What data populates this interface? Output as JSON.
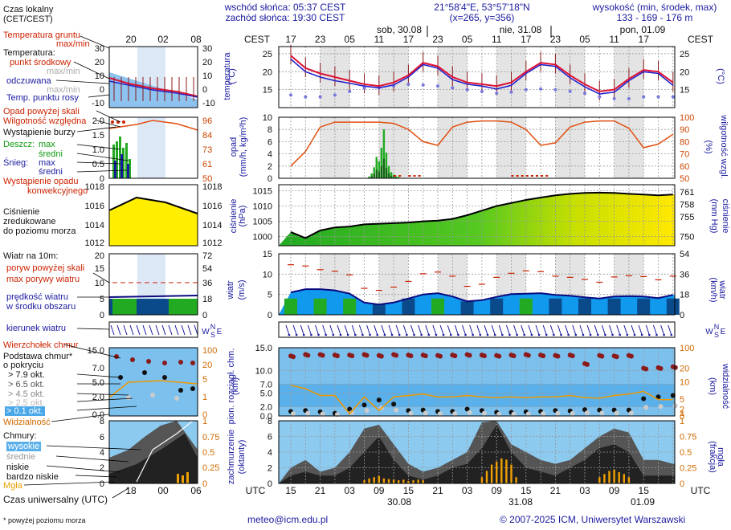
{
  "header": {
    "sunrise": "wschód słońca: 05:37 CEST",
    "sunset": "zachód słońca: 19:30 CEST",
    "coords": "21°58'4\"E, 53°57'18\"N",
    "grid": "(x=265,  y=356)",
    "elev_title": "wysokość (min, środek, max)",
    "elev_values": "133 - 169 - 176 m"
  },
  "legend": {
    "local_time": "Czas lokalny",
    "local_time_sub": "(CET/CEST)",
    "ground_temp": "Temperatura gruntu",
    "ground_temp_sub": "max/min",
    "temperature": "Temperatura:",
    "mid_point": "punkt środkowy",
    "maxmin": "max/min",
    "felt": "odczuwana",
    "felt_maxmin": "max/min",
    "dew": "Temp. punktu rosy",
    "precip_above": "Opad powyżej skali",
    "humidity": "Wilgotność względna",
    "storm": "Wystąpienie burzy",
    "rain": "Deszcz:",
    "rain_max": "max",
    "rain_mean": "średni",
    "snow": "Śnieg:",
    "snow_max": "max",
    "snow_mean": "średni",
    "conv": "Wystąpienie opadu",
    "conv2": "konwekcyjnego",
    "pressure1": "Ciśnienie",
    "pressure2": "zredukowane",
    "pressure3": "do poziomu morza",
    "wind_at": "Wiatr na 10m:",
    "gust_above": "poryw powyżej skali",
    "gust_max": "max porywy wiatru",
    "wind_speed": "prędkość wiatru",
    "wind_area": "w środku obszaru",
    "wind_dir": "kierunek wiatru",
    "cloud_top": "Wierzchołek chmur",
    "cloud_base": "Podstawa chmur*",
    "cloud_base2": "o pokryciu",
    "okt1": "> 7.9 okt.",
    "okt2": "> 6.5 okt.",
    "okt3": "> 4.5 okt.",
    "okt4": "> 2.5 okt.",
    "okt5": "> 0.1 okt.",
    "visibility": "Widzialność",
    "clouds": "Chmury:",
    "high": "wysokie",
    "mid": "średnie",
    "low": "niskie",
    "very_low": "bardzo niskie",
    "fog": "Mgła",
    "utc_label": "Czas uniwersalny (UTC)",
    "footnote": "* powyżej poziomu morza"
  },
  "footer": {
    "email": "meteo@icm.edu.pl",
    "copyright": "© 2007-2025 ICM, Uniwersytet Warszawski"
  },
  "axes": {
    "cest": "CEST",
    "utc": "UTC",
    "day1": "sob, 30.08",
    "day2": "nie, 31.08",
    "day3": "pon, 01.09",
    "date1": "30.08",
    "date2": "31.08",
    "date3": "01.09",
    "cest_ticks": [
      "17",
      "23",
      "05",
      "11",
      "17",
      "23",
      "05",
      "11",
      "17",
      "23",
      "05",
      "11",
      "17"
    ],
    "utc_ticks": [
      "15",
      "21",
      "03",
      "09",
      "15",
      "21",
      "03",
      "09",
      "15",
      "21",
      "03",
      "09",
      "15"
    ],
    "small_top": [
      "20",
      "02",
      "08"
    ],
    "small_bottom": [
      "18",
      "00",
      "06"
    ]
  },
  "panels": {
    "temp_label": "temperatura",
    "temp_unit": "(°C)",
    "precip_label": "opad",
    "precip_unit": "(mm/h, kg/m²h)",
    "hum_label": "wilgotność wzgl.",
    "hum_unit": "(%)",
    "press_label": "ciśnienie",
    "press_unit": "(hPa)",
    "press_label_r": "ciśnienie",
    "press_unit_r": "(mm Hg)",
    "wind_label": "wiatr",
    "wind_unit": "(m/s)",
    "wind_unit_r": "(km/h)",
    "cloud_label": "pion. rozciągł. chm.",
    "cloud_unit": "(km)",
    "vis_label": "widzialność",
    "vis_unit": "(km)",
    "cover_label": "zachmurzenie",
    "cover_unit": "(oktanty)",
    "fog_label": "mgła",
    "fog_unit": "(frakcja)"
  },
  "chart_data": [
    {
      "type": "line",
      "title": "temperatura",
      "ylabel": "(°C)",
      "ylim": [
        10,
        27
      ],
      "yticks": [
        15,
        20,
        25
      ],
      "x_hours": [
        0,
        3,
        6,
        9,
        12,
        15,
        18,
        21,
        24,
        27,
        30,
        33,
        36,
        39,
        42,
        45,
        48,
        51,
        54,
        57,
        60,
        63,
        66,
        69,
        72,
        75,
        78
      ],
      "series": [
        {
          "name": "temperatura punkt środkowy",
          "color": "#dd1133",
          "values": [
            24.5,
            21,
            19.5,
            18.5,
            17.5,
            16.5,
            16,
            17,
            19,
            22.5,
            21.5,
            18.5,
            17,
            16.5,
            16,
            17,
            20,
            22.5,
            22,
            19,
            16.5,
            14.5,
            15,
            18,
            20.5,
            20,
            17
          ]
        },
        {
          "name": "temperatura odczuwana",
          "color": "#2222cc",
          "values": [
            23.5,
            20,
            18.5,
            17.5,
            16.8,
            16,
            15.5,
            16.3,
            18.5,
            22,
            21,
            17.8,
            16.5,
            16,
            15.2,
            16.2,
            19.5,
            22,
            21.5,
            18.3,
            15.8,
            13.8,
            14.3,
            17.5,
            20,
            19.5,
            16.2
          ]
        },
        {
          "name": "temperatura punktu rosy",
          "color": "#7777dd",
          "values": [
            13.5,
            13,
            13,
            13.5,
            14.5,
            15.5,
            15.5,
            16,
            16.5,
            16.3,
            16,
            15.5,
            15,
            14.5,
            14,
            14.3,
            15,
            15.2,
            15,
            14.5,
            14,
            13,
            12.5,
            12.5,
            13,
            13,
            13
          ]
        }
      ]
    },
    {
      "type": "bar",
      "title": "opad",
      "ylabel": "(mm/h, kg/m²h)",
      "ylim": [
        0,
        10
      ],
      "x_hours": [
        16,
        16.5,
        17,
        17.5,
        18,
        18.5,
        19,
        19.5,
        20,
        20.5,
        21,
        21.5,
        22
      ],
      "values": [
        0.3,
        0.8,
        1.8,
        3.5,
        2.8,
        5.0,
        8.0,
        4.2,
        2.0,
        1.0,
        0.6,
        0.3,
        0.2
      ],
      "series_secondary": {
        "name": "wilgotność względna",
        "ylim": [
          50,
          100
        ],
        "color": "#e05010",
        "x_hours": [
          0,
          3,
          6,
          9,
          12,
          15,
          18,
          21,
          24,
          27,
          30,
          33,
          36,
          39,
          42,
          45,
          48,
          51,
          54,
          57,
          60,
          63,
          66,
          69,
          72,
          75,
          78
        ],
        "values": [
          60,
          72,
          92,
          96,
          96,
          96,
          96,
          95,
          90,
          80,
          77,
          92,
          96,
          97,
          97,
          96,
          90,
          77,
          79,
          92,
          96,
          97,
          97,
          91,
          75,
          78,
          86
        ]
      }
    },
    {
      "type": "area",
      "title": "ciśnienie",
      "ylabel": "(hPa)",
      "ylim": [
        997,
        1017
      ],
      "yticks": [
        1000,
        1005,
        1010,
        1015
      ],
      "x_hours": [
        0,
        3,
        6,
        9,
        12,
        15,
        18,
        21,
        24,
        27,
        30,
        33,
        36,
        39,
        42,
        45,
        48,
        51,
        54,
        57,
        60,
        63,
        66,
        69,
        72,
        75,
        78
      ],
      "values": [
        1001.5,
        999.5,
        1002,
        1003,
        1003.3,
        1004,
        1004.2,
        1004.4,
        1004.6,
        1005,
        1005.2,
        1005.8,
        1007,
        1008.5,
        1010,
        1011,
        1012,
        1012.8,
        1013.5,
        1014,
        1014.3,
        1014.4,
        1014.3,
        1014,
        1013.8,
        1013.5,
        1013.8
      ]
    },
    {
      "type": "line",
      "title": "wiatr",
      "ylabel": "(m/s)",
      "ylim": [
        0,
        15
      ],
      "yticks": [
        0,
        5,
        10,
        15
      ],
      "x_hours": [
        0,
        3,
        6,
        9,
        12,
        15,
        18,
        21,
        24,
        27,
        30,
        33,
        36,
        39,
        42,
        45,
        48,
        51,
        54,
        57,
        60,
        63,
        66,
        69,
        72,
        75,
        78
      ],
      "series": [
        {
          "name": "prędkość wiatru",
          "color": "#0a0a80",
          "values": [
            5.5,
            6.3,
            6.3,
            6.0,
            5.2,
            3.0,
            2.5,
            3.0,
            4.0,
            5.0,
            5.3,
            4.5,
            3.3,
            3.6,
            4.4,
            5.1,
            5.2,
            5.3,
            4.9,
            4.7,
            4.3,
            4.0,
            4.5,
            4.6,
            4.5,
            4.1,
            4.9
          ]
        },
        {
          "name": "max porywy wiatru",
          "color": "#cc2200",
          "values": [
            12.3,
            12.0,
            11.1,
            10.7,
            9.8,
            6.5,
            6.0,
            6.8,
            8.2,
            10.1,
            10.5,
            9.5,
            7.0,
            7.5,
            9.2,
            10.2,
            10.8,
            10.6,
            9.5,
            9.2,
            8.7,
            8.0,
            9.3,
            9.6,
            9.4,
            8.6,
            9.5
          ]
        }
      ]
    },
    {
      "type": "scatter",
      "title": "pion. rozciągł. chm.",
      "ylabel": "(km)",
      "ylim": [
        0,
        15
      ],
      "yticks": [
        0,
        2,
        5,
        7,
        10,
        15
      ],
      "yticklabels": [
        "0.0",
        "2.0",
        "5.0",
        "7.0",
        "10.0",
        "15.0"
      ],
      "x_hours": [
        0,
        3,
        6,
        9,
        12,
        15,
        18,
        21,
        24,
        27,
        30,
        33,
        36,
        39,
        42,
        45,
        48,
        51,
        54,
        57,
        60,
        63,
        66,
        69,
        72,
        75,
        78
      ],
      "series": [
        {
          "name": "wierzchołek chmur",
          "color": "#8b1a1a",
          "values": [
            13.2,
            13.5,
            13.5,
            13.4,
            13.4,
            13.5,
            13.3,
            13.5,
            13.4,
            13.4,
            13.3,
            13.4,
            13.5,
            13.4,
            13.3,
            13.4,
            13.5,
            13.4,
            13.3,
            13.4,
            11.5,
            13.3,
            13.2,
            13.3,
            10.5,
            10.6,
            10.8
          ]
        },
        {
          "name": "podstawa chmur",
          "color": "#111111",
          "values": [
            1.0,
            1.2,
            0.9,
            0.6,
            1.5,
            2.4,
            3.5,
            2.6,
            1.2,
            1.3,
            1.0,
            1.0,
            1.5,
            1.2,
            0.8,
            0.8,
            0.9,
            1.0,
            1.2,
            1.1,
            1.4,
            1.3,
            1.3,
            1.3,
            3.8,
            4.2,
            4.5
          ]
        }
      ],
      "series_secondary": {
        "name": "widzialność",
        "ylim": [
          0,
          100
        ],
        "color": "#ee9900",
        "x_hours": [
          0,
          3,
          6,
          9,
          12,
          15,
          18,
          21,
          24,
          27,
          30,
          33,
          36,
          39,
          42,
          45,
          48,
          51,
          54,
          57,
          60,
          63,
          66,
          69,
          72,
          75,
          78
        ],
        "values": [
          45,
          40,
          30,
          30,
          3,
          28,
          8,
          28,
          30,
          32,
          28,
          28,
          30,
          28,
          27,
          28,
          27,
          28,
          28,
          30,
          27,
          26,
          30,
          32,
          36,
          24,
          24
        ]
      }
    },
    {
      "type": "area",
      "title": "zachmurzenie",
      "ylabel": "(oktanty)",
      "ylim": [
        0,
        8
      ],
      "yticks": [
        0,
        2,
        4,
        6,
        8
      ],
      "x_hours": [
        0,
        3,
        6,
        9,
        12,
        15,
        18,
        21,
        24,
        27,
        30,
        33,
        36,
        39,
        42,
        45,
        48,
        51,
        54,
        57,
        60,
        63,
        66,
        69,
        72,
        75,
        78
      ],
      "series": [
        {
          "name": "niskie",
          "color": "#555555",
          "values": [
            2,
            3,
            1.5,
            2,
            4,
            7,
            7.5,
            5,
            2.5,
            1.5,
            2,
            3,
            4,
            7.8,
            8,
            5,
            4,
            3,
            2.5,
            3,
            4.5,
            6,
            7,
            6.5,
            3,
            3,
            2.5
          ]
        },
        {
          "name": "bardzo niskie",
          "color": "#222222",
          "values": [
            1,
            1.5,
            1,
            1,
            2,
            4,
            6,
            3,
            1,
            0.5,
            1,
            2,
            2.5,
            4.5,
            7.5,
            4,
            2,
            1.5,
            1,
            2,
            3,
            4.5,
            5,
            4,
            1,
            1,
            1
          ]
        }
      ],
      "series_secondary": {
        "name": "mgła",
        "ylim": [
          0,
          1
        ],
        "color": "#f0a000",
        "x_hours": [
          15,
          16,
          17,
          18,
          19,
          20,
          21,
          22,
          23,
          24,
          25,
          26,
          27,
          39,
          40,
          41,
          42,
          43,
          44,
          45,
          46,
          63,
          64,
          65,
          66,
          67,
          68,
          69
        ],
        "values": [
          0.05,
          0.08,
          0.1,
          0.12,
          0.08,
          0.07,
          0.06,
          0.05,
          0.06,
          0.04,
          0.05,
          0.06,
          0.05,
          0.1,
          0.2,
          0.3,
          0.35,
          0.4,
          0.38,
          0.3,
          0.1,
          0.1,
          0.15,
          0.2,
          0.22,
          0.18,
          0.15,
          0.1
        ]
      }
    }
  ]
}
